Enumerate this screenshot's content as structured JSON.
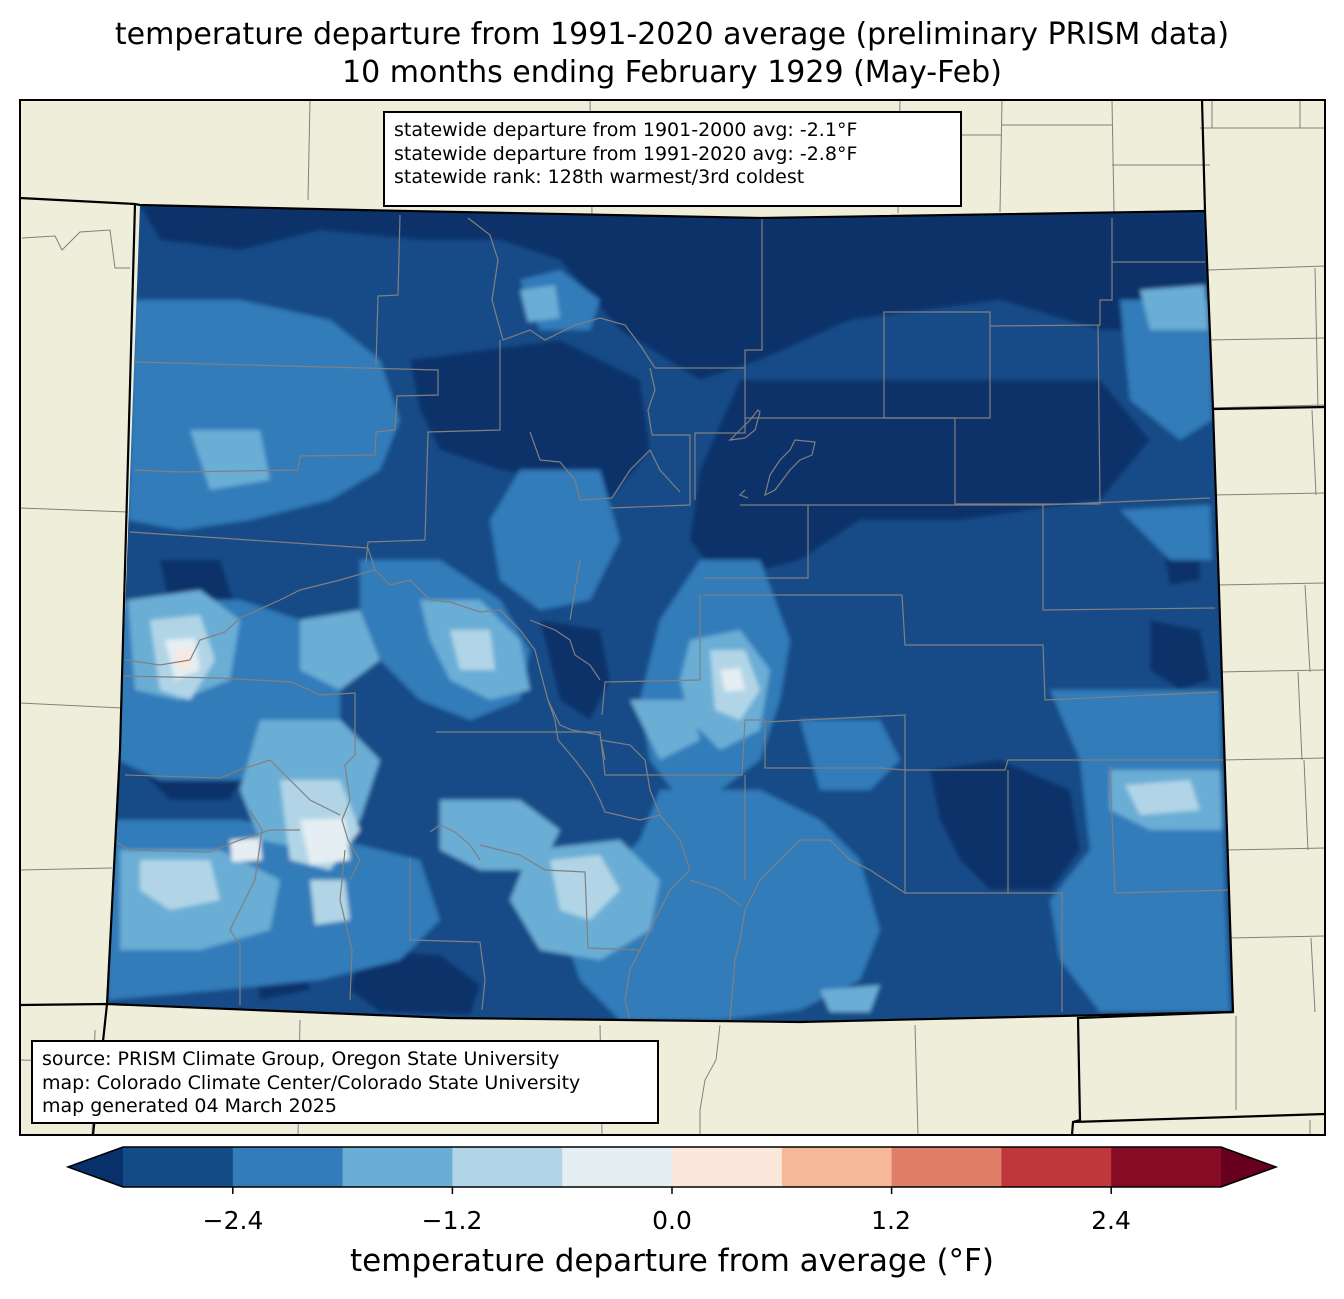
{
  "title": {
    "line1": "temperature departure from 1991-2020 average (preliminary PRISM data)",
    "line2": "10 months ending February 1929 (May-Feb)"
  },
  "stats_box": {
    "line1": "statewide departure from 1901-2000 avg: -2.1°F",
    "line2": "statewide departure from 1991-2020 avg: -2.8°F",
    "line3": "statewide rank: 128th warmest/3rd coldest"
  },
  "source_box": {
    "line1": "source: PRISM Climate Group, Oregon State University",
    "line2": "map: Colorado Climate Center/Colorado State University",
    "line3": "map generated 04 March 2025"
  },
  "colorbar": {
    "label": "temperature departure from average (°F)",
    "min": -3.0,
    "max": 3.0,
    "step": 0.6,
    "ticks": [
      "−2.4",
      "−1.2",
      "0.0",
      "1.2",
      "2.4"
    ],
    "tick_values": [
      -2.4,
      -1.2,
      0.0,
      1.2,
      2.4
    ],
    "colors": [
      "#134b87",
      "#327cba",
      "#6aadd5",
      "#b1d5e7",
      "#e5eef3",
      "#fae8dd",
      "#f7b799",
      "#e07f67",
      "#c0363b",
      "#860c25"
    ],
    "under_color": "#08306b",
    "over_color": "#67001f"
  },
  "colors": {
    "land": "#efeedb",
    "state_border": "#000000",
    "county_border": "#808080"
  }
}
